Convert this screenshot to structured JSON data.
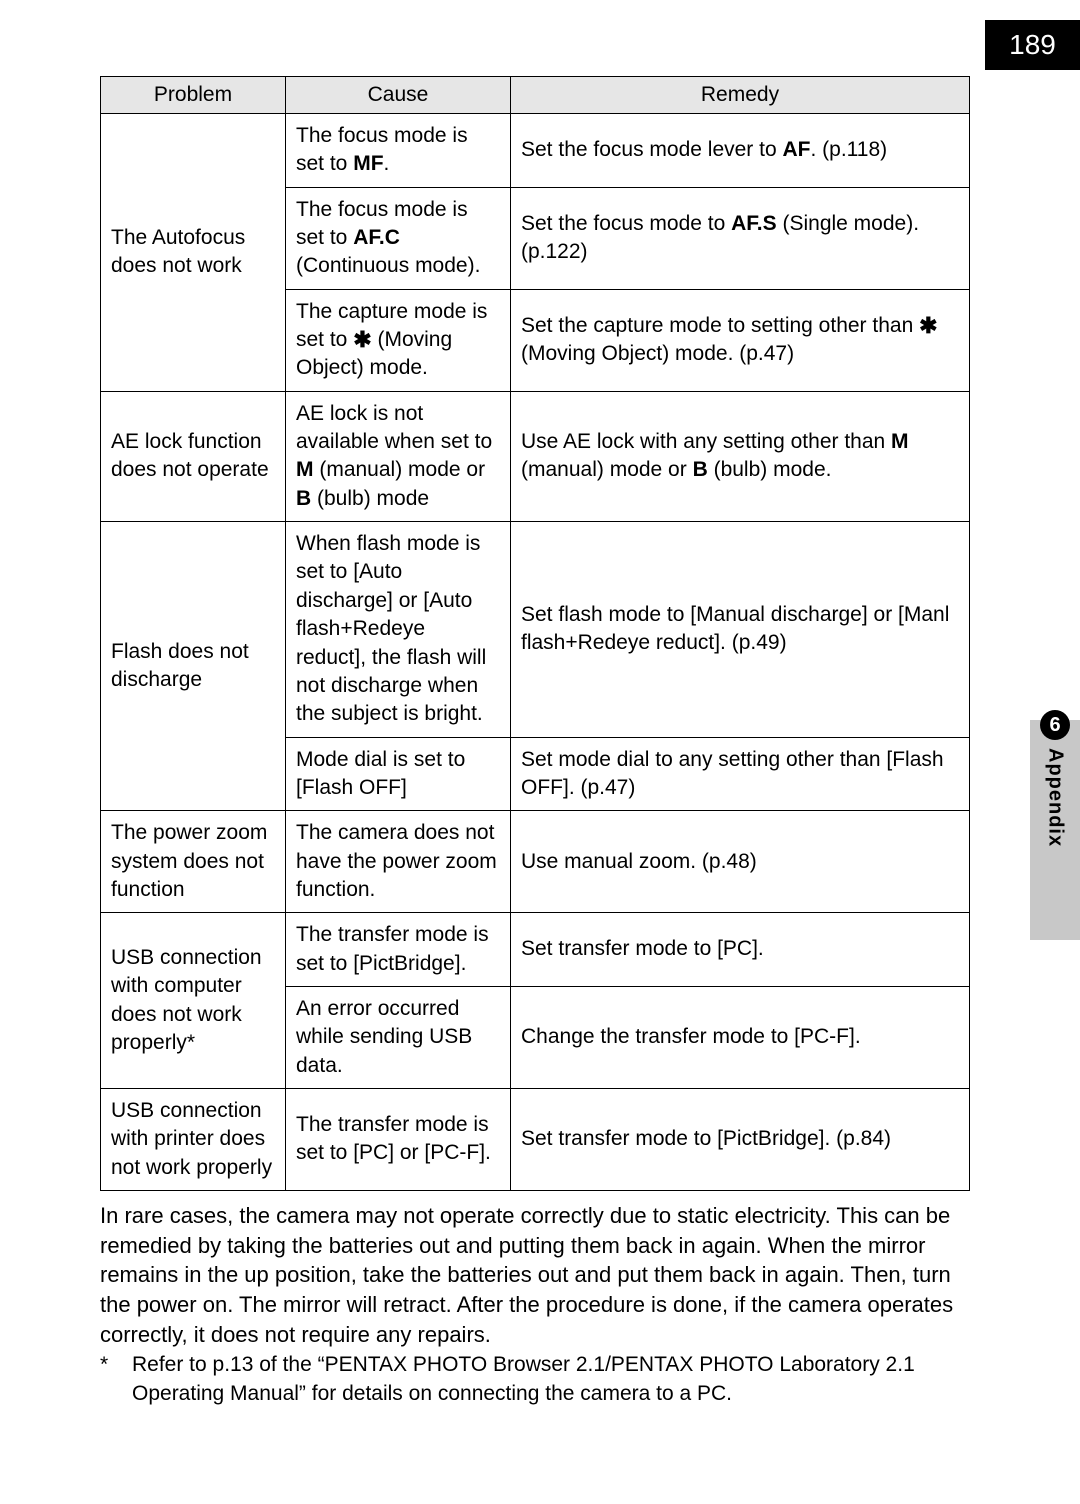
{
  "page_number": "189",
  "side_tab": {
    "num": "6",
    "label": "Appendix"
  },
  "table": {
    "headers": {
      "problem": "Problem",
      "cause": "Cause",
      "remedy": "Remedy"
    },
    "rows": [
      {
        "problem": "The Autofocus does not work",
        "cause_a": "The focus mode is set to ",
        "cause_a_bold": "MF",
        "cause_a_tail": ".",
        "remedy_a_pre": "Set the focus mode lever to ",
        "remedy_a_bold": "AF",
        "remedy_a_tail": ". (p.118)",
        "cause_b_pre": "The focus mode is set to ",
        "cause_b_bold": "AF.C",
        "cause_b_tail": " (Continuous mode).",
        "remedy_b_pre": "Set the focus mode to ",
        "remedy_b_bold": "AF.S",
        "remedy_b_tail": " (Single mode). (p.122)",
        "cause_c_pre": "The capture mode is set to ",
        "cause_c_icon": "✱",
        "cause_c_tail": " (Moving Object) mode.",
        "remedy_c_pre": "Set the capture mode to setting other than ",
        "remedy_c_icon": "✱",
        "remedy_c_tail": " (Moving Object) mode. (p.47)"
      },
      {
        "problem": "AE lock function does not operate",
        "cause_pre": "AE lock is not available when set to ",
        "cause_b1": "M",
        "cause_mid": " (manual) mode or ",
        "cause_b2": "B",
        "cause_tail": " (bulb) mode",
        "remedy_pre": "Use AE lock with any setting other than ",
        "remedy_b1": "M",
        "remedy_mid": " (manual) mode or ",
        "remedy_b2": "B",
        "remedy_tail": " (bulb) mode."
      },
      {
        "problem": "Flash does not discharge",
        "cause_a": "When flash mode is set to [Auto discharge] or [Auto flash+Redeye reduct], the flash will not discharge when the subject is bright.",
        "remedy_a": "Set flash mode to [Manual discharge] or [Manl flash+Redeye reduct]. (p.49)",
        "cause_b": "Mode dial is set to [Flash OFF]",
        "remedy_b": "Set mode dial to any setting other than [Flash OFF]. (p.47)"
      },
      {
        "problem": "The power zoom system does not function",
        "cause": "The camera does not have the power zoom function.",
        "remedy": "Use manual zoom. (p.48)"
      },
      {
        "problem": "USB connection with computer does not work properly*",
        "cause_a": "The transfer mode is set to [PictBridge].",
        "remedy_a": "Set transfer mode to [PC].",
        "cause_b": "An error occurred while sending USB data.",
        "remedy_b": "Change the transfer mode to [PC-F]."
      },
      {
        "problem": "USB connection with printer does not work properly",
        "cause": "The transfer mode is set to [PC] or [PC-F].",
        "remedy": "Set transfer mode to [PictBridge]. (p.84)"
      }
    ]
  },
  "paragraph": "In rare cases, the camera may not operate correctly due to static electricity. This can be remedied by taking the batteries out and putting them back in again. When the mirror remains in the up position, take the batteries out and put them back in again. Then, turn the power on. The mirror will retract. After the procedure is done, if the camera operates correctly, it does not require any repairs.",
  "footnote": {
    "mark": "*",
    "text": "Refer to p.13 of the “PENTAX PHOTO Browser 2.1/PENTAX PHOTO Laboratory 2.1 Operating Manual” for details on connecting the camera to a PC."
  },
  "colors": {
    "header_bg": "#e6e6e6",
    "tab_bg": "#c8c8c8",
    "border": "#000000",
    "page_bg": "#ffffff"
  }
}
